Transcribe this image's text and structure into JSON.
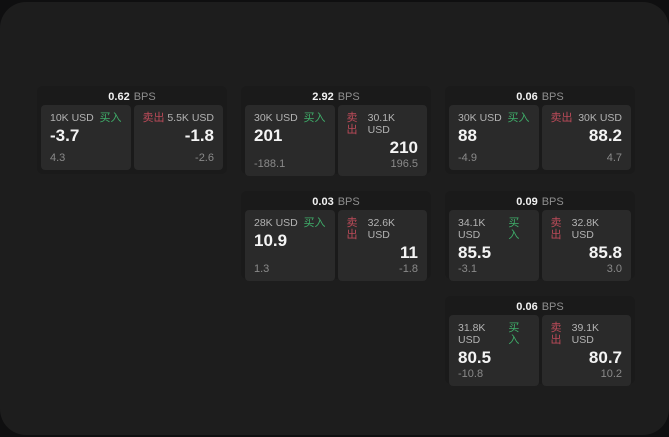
{
  "labels": {
    "buy": "买入",
    "sell": "卖出",
    "bps_unit": "BPS"
  },
  "colors": {
    "page_background": "#0f0f10",
    "panel_background": "#1d1d1d",
    "card_background": "#1a1a1a",
    "subcard_background": "#2a2a2a",
    "buy_green": "#3fae6a",
    "sell_red": "#bc4b59",
    "value_white": "#f4f4f4",
    "muted_gray": "#8a8a8a"
  },
  "cards": [
    {
      "col": "1",
      "row": "1",
      "bps": "0.62",
      "buy": {
        "amount": "10K USD",
        "value": "-3.7",
        "delta": "4.3"
      },
      "sell": {
        "amount": "5.5K USD",
        "value": "-1.8",
        "delta": "-2.6"
      }
    },
    {
      "col": "2",
      "row": "1",
      "bps": "2.92",
      "buy": {
        "amount": "30K USD",
        "value": "201",
        "delta": "-188.1"
      },
      "sell": {
        "amount": "30.1K USD",
        "value": "210",
        "delta": "196.5"
      }
    },
    {
      "col": "3",
      "row": "1",
      "bps": "0.06",
      "buy": {
        "amount": "30K USD",
        "value": "88",
        "delta": "-4.9"
      },
      "sell": {
        "amount": "30K USD",
        "value": "88.2",
        "delta": "4.7"
      }
    },
    {
      "col": "2",
      "row": "2",
      "bps": "0.03",
      "buy": {
        "amount": "28K USD",
        "value": "10.9",
        "delta": "1.3"
      },
      "sell": {
        "amount": "32.6K USD",
        "value": "11",
        "delta": "-1.8"
      }
    },
    {
      "col": "3",
      "row": "2",
      "bps": "0.09",
      "buy": {
        "amount": "34.1K USD",
        "value": "85.5",
        "delta": "-3.1"
      },
      "sell": {
        "amount": "32.8K USD",
        "value": "85.8",
        "delta": "3.0"
      }
    },
    {
      "col": "3",
      "row": "3",
      "bps": "0.06",
      "buy": {
        "amount": "31.8K USD",
        "value": "80.5",
        "delta": "-10.8"
      },
      "sell": {
        "amount": "39.1K USD",
        "value": "80.7",
        "delta": "10.2"
      }
    }
  ]
}
